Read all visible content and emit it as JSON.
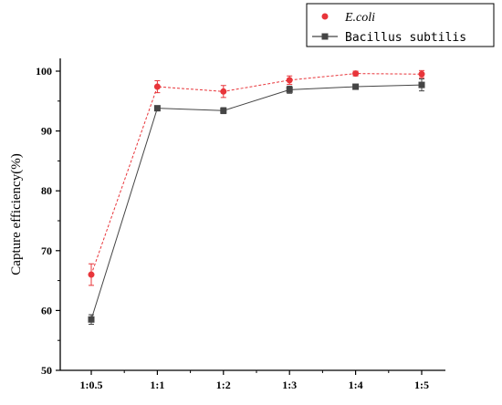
{
  "chart_data": {
    "type": "line",
    "categories": [
      "1:0.5",
      "1:1",
      "1:2",
      "1:3",
      "1:4",
      "1:5"
    ],
    "ylabel": "Capture efficiency(%)",
    "ylim": [
      50,
      100
    ],
    "yticks": [
      50,
      60,
      70,
      80,
      90,
      100
    ],
    "grid": false,
    "legend_position": "top-right",
    "series": [
      {
        "name": "E.coli",
        "color": "#e8353a",
        "marker": "circle",
        "line_style": "dashed",
        "values": [
          66.0,
          97.4,
          96.6,
          98.5,
          99.6,
          99.5
        ],
        "errors": [
          1.8,
          1.0,
          1.0,
          0.7,
          0.4,
          0.6
        ]
      },
      {
        "name": "Bacillus subtilis",
        "color": "#454545",
        "marker": "square",
        "line_style": "solid",
        "values": [
          58.5,
          93.8,
          93.4,
          96.9,
          97.4,
          97.7
        ],
        "errors": [
          0.8,
          0.3,
          0.5,
          0.6,
          0.3,
          1.0
        ]
      }
    ]
  }
}
